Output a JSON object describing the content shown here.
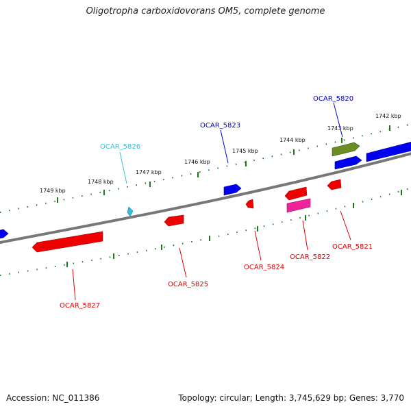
{
  "title": "Oligotropha carboxidovorans OM5, complete genome",
  "footer": {
    "accession": "Accession: NC_011386",
    "topology": "Topology: circular; Length: 3,745,629 bp; Genes: 3,770"
  },
  "kbp_labels": [
    "1749 kbp",
    "1748 kbp",
    "1747 kbp",
    "1746 kbp",
    "1745 kbp",
    "1744 kbp",
    "1743 kbp",
    "1742 kbp"
  ],
  "gene_labels": [
    {
      "text": "OCAR_5826",
      "color": "#33bbdd"
    },
    {
      "text": "OCAR_5823",
      "color": "#0000cc"
    },
    {
      "text": "OCAR_5820",
      "color": "#0000cc"
    },
    {
      "text": "OCAR_5827",
      "color": "#dd0000"
    },
    {
      "text": "OCAR_5825",
      "color": "#dd0000"
    },
    {
      "text": "OCAR_5824",
      "color": "#dd0000"
    },
    {
      "text": "OCAR_5822",
      "color": "#dd0000"
    },
    {
      "text": "OCAR_5821",
      "color": "#dd0000"
    }
  ],
  "colors": {
    "forward_gene": "#0000ee",
    "reverse_gene": "#ee0000",
    "small_gene": "#33bbdd",
    "pink_gene": "#ee2299",
    "olive_gene": "#6b8e23",
    "backbone": "#808080",
    "tick": "#1a7a1a"
  }
}
